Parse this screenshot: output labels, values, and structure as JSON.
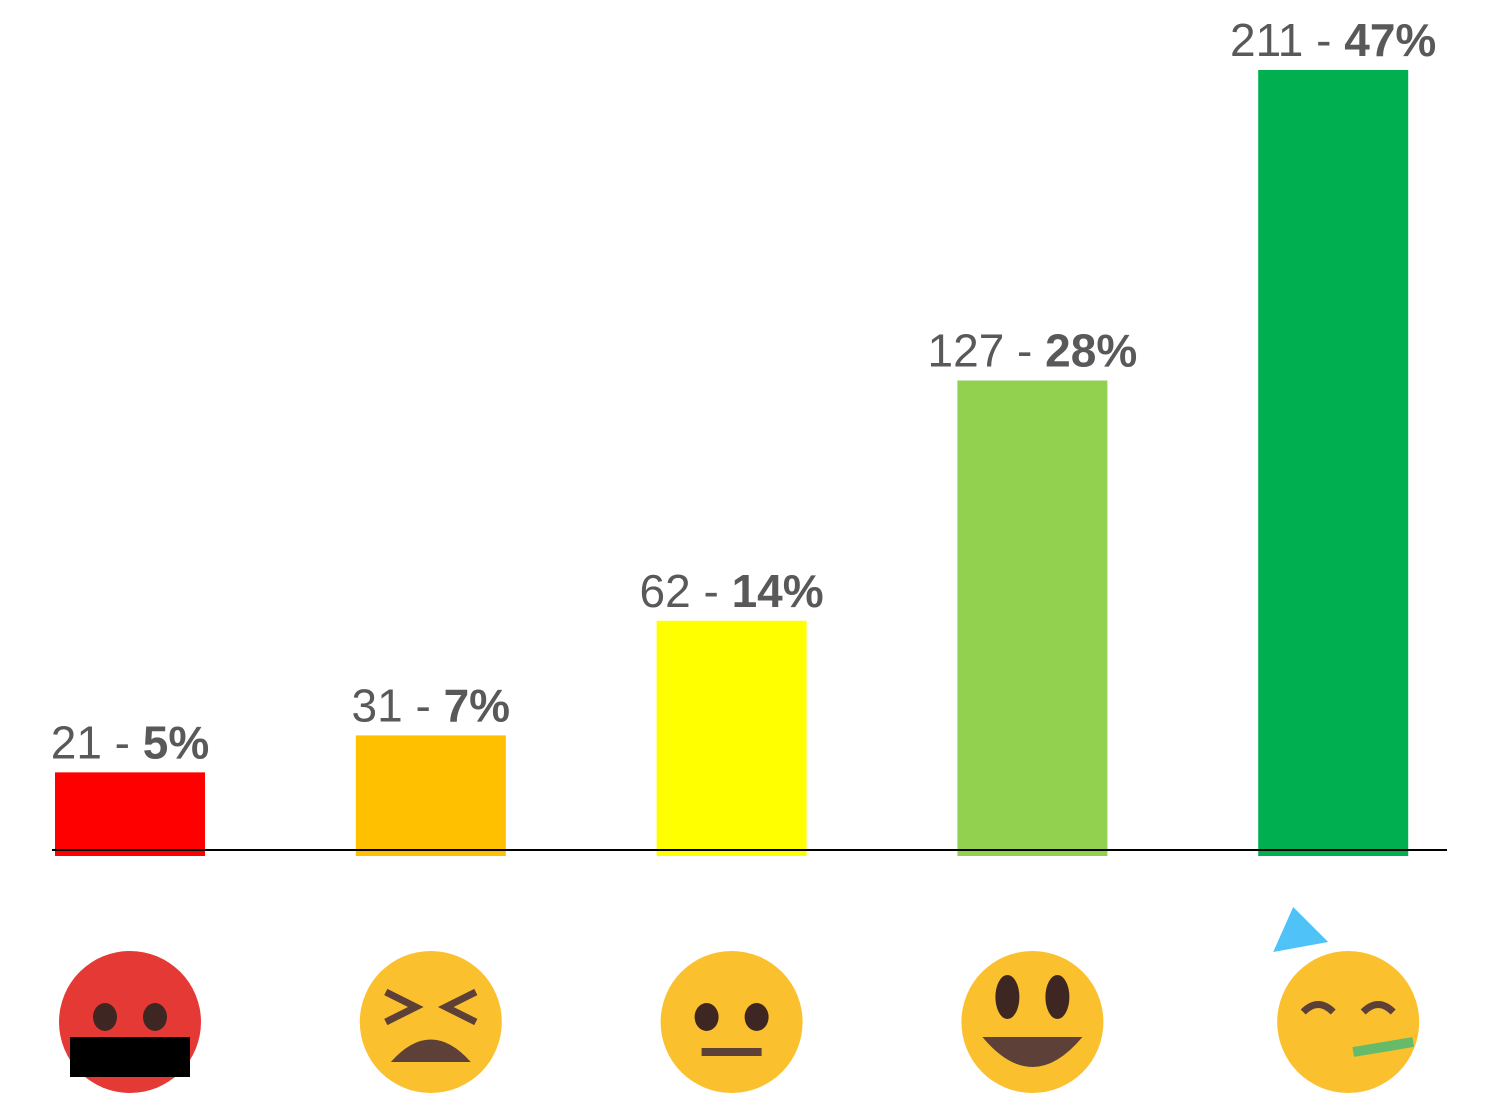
{
  "chart_data": {
    "type": "bar",
    "categories": [
      null,
      null,
      null,
      null,
      null
    ],
    "values": [
      21,
      31,
      62,
      127,
      211
    ],
    "value_labels": [
      "21 - 5%",
      "31 - 7%",
      "62 - 14%",
      "127 - 28%",
      "211 - 47%"
    ],
    "colors": [
      "#ff0000",
      "#ffc000",
      "#ffff00",
      "#92d050",
      "#00b050"
    ],
    "ylim": [
      0,
      211
    ]
  }
}
